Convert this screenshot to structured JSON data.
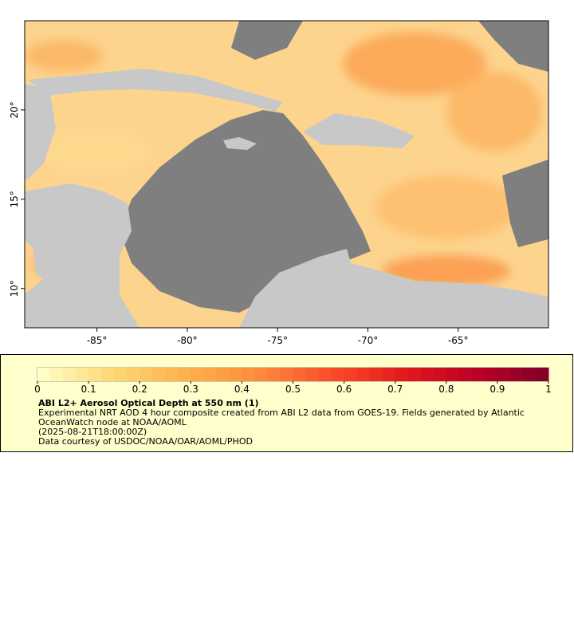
{
  "chart_data": {
    "type": "map",
    "xlim": [
      -89,
      -60
    ],
    "ylim": [
      7.8,
      25
    ],
    "xticks": [
      {
        "value": -85,
        "label": "-85°"
      },
      {
        "value": -80,
        "label": "-80°"
      },
      {
        "value": -75,
        "label": "-75°"
      },
      {
        "value": -70,
        "label": "-70°"
      },
      {
        "value": -65,
        "label": "-65°"
      }
    ],
    "yticks": [
      {
        "value": 10,
        "label": "10°"
      },
      {
        "value": 15,
        "label": "15°"
      },
      {
        "value": 20,
        "label": "20°"
      }
    ],
    "colorbar": {
      "lim": [
        0,
        1
      ],
      "ticks": [
        0,
        0.1,
        0.2,
        0.3,
        0.4,
        0.5,
        0.6,
        0.7,
        0.8,
        0.9,
        1
      ],
      "colors": [
        "#ffffcc",
        "#fed976",
        "#feb24c",
        "#fd8d3c",
        "#fc4e2a",
        "#e31a1c",
        "#bd0026",
        "#800026"
      ]
    },
    "title": "ABI L2+ Aerosol Optical Depth at 550 nm (1)",
    "description": "Experimental NRT AOD 4 hour composite created from ABI L2 data from GOES-19. Fields generated by Atlantic OceanWatch node at NOAA/AOML",
    "time": "(2025-08-21T18:00:00Z)",
    "credit": "Data courtesy of USDOC/NOAA/OAR/AOML/PHOD"
  }
}
